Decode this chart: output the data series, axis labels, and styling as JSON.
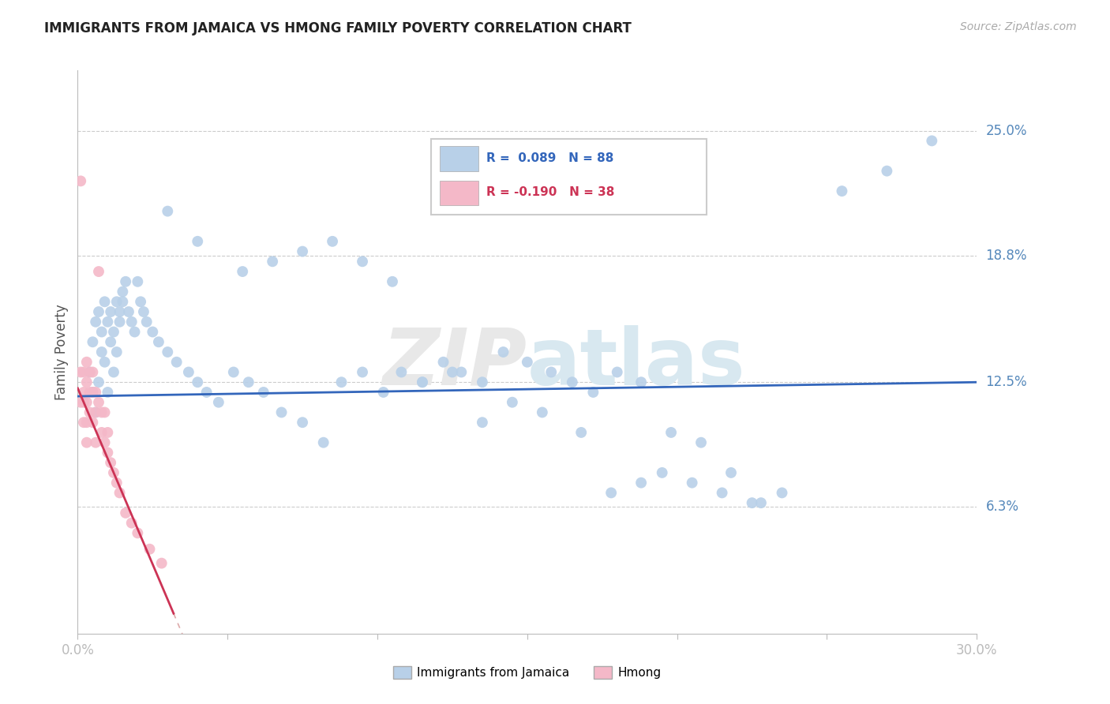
{
  "title": "IMMIGRANTS FROM JAMAICA VS HMONG FAMILY POVERTY CORRELATION CHART",
  "source": "Source: ZipAtlas.com",
  "ylabel": "Family Poverty",
  "ytick_labels": [
    "25.0%",
    "18.8%",
    "12.5%",
    "6.3%"
  ],
  "ytick_values": [
    0.25,
    0.188,
    0.125,
    0.063
  ],
  "xlim": [
    0.0,
    0.3
  ],
  "ylim": [
    0.0,
    0.28
  ],
  "watermark": "ZIPatlas",
  "legend_label_1": "Immigrants from Jamaica",
  "legend_label_2": "Hmong",
  "blue_color": "#b8d0e8",
  "pink_color": "#f4b8c8",
  "blue_line_color": "#3366bb",
  "pink_line_color": "#cc3355",
  "pink_dash_color": "#ddaaaa",
  "blue_r": 0.089,
  "blue_n": 88,
  "pink_r": -0.19,
  "pink_n": 38,
  "blue_scatter_x": [
    0.004,
    0.005,
    0.005,
    0.006,
    0.006,
    0.007,
    0.007,
    0.008,
    0.008,
    0.009,
    0.009,
    0.01,
    0.01,
    0.011,
    0.011,
    0.012,
    0.012,
    0.013,
    0.013,
    0.014,
    0.014,
    0.015,
    0.015,
    0.016,
    0.017,
    0.018,
    0.019,
    0.02,
    0.021,
    0.022,
    0.023,
    0.025,
    0.027,
    0.03,
    0.033,
    0.037,
    0.04,
    0.043,
    0.047,
    0.052,
    0.057,
    0.062,
    0.068,
    0.075,
    0.082,
    0.088,
    0.095,
    0.102,
    0.108,
    0.115,
    0.122,
    0.128,
    0.135,
    0.142,
    0.15,
    0.158,
    0.165,
    0.172,
    0.18,
    0.188,
    0.195,
    0.205,
    0.215,
    0.225,
    0.235,
    0.03,
    0.04,
    0.055,
    0.065,
    0.075,
    0.085,
    0.095,
    0.105,
    0.115,
    0.125,
    0.135,
    0.145,
    0.155,
    0.168,
    0.178,
    0.188,
    0.198,
    0.208,
    0.218,
    0.228,
    0.255,
    0.27,
    0.285
  ],
  "blue_scatter_y": [
    0.13,
    0.145,
    0.12,
    0.155,
    0.11,
    0.16,
    0.125,
    0.15,
    0.14,
    0.165,
    0.135,
    0.155,
    0.12,
    0.16,
    0.145,
    0.15,
    0.13,
    0.165,
    0.14,
    0.16,
    0.155,
    0.17,
    0.165,
    0.175,
    0.16,
    0.155,
    0.15,
    0.175,
    0.165,
    0.16,
    0.155,
    0.15,
    0.145,
    0.14,
    0.135,
    0.13,
    0.125,
    0.12,
    0.115,
    0.13,
    0.125,
    0.12,
    0.11,
    0.105,
    0.095,
    0.125,
    0.13,
    0.12,
    0.13,
    0.125,
    0.135,
    0.13,
    0.125,
    0.14,
    0.135,
    0.13,
    0.125,
    0.12,
    0.13,
    0.125,
    0.08,
    0.075,
    0.07,
    0.065,
    0.07,
    0.21,
    0.195,
    0.18,
    0.185,
    0.19,
    0.195,
    0.185,
    0.175,
    0.125,
    0.13,
    0.105,
    0.115,
    0.11,
    0.1,
    0.07,
    0.075,
    0.1,
    0.095,
    0.08,
    0.065,
    0.22,
    0.23,
    0.245
  ],
  "pink_scatter_x": [
    0.001,
    0.001,
    0.001,
    0.002,
    0.002,
    0.002,
    0.002,
    0.003,
    0.003,
    0.003,
    0.003,
    0.003,
    0.004,
    0.004,
    0.004,
    0.005,
    0.005,
    0.005,
    0.006,
    0.006,
    0.006,
    0.007,
    0.007,
    0.008,
    0.008,
    0.009,
    0.009,
    0.01,
    0.01,
    0.011,
    0.012,
    0.013,
    0.014,
    0.016,
    0.018,
    0.02,
    0.024,
    0.028
  ],
  "pink_scatter_y": [
    0.225,
    0.13,
    0.115,
    0.13,
    0.12,
    0.115,
    0.105,
    0.135,
    0.125,
    0.115,
    0.105,
    0.095,
    0.13,
    0.12,
    0.11,
    0.13,
    0.12,
    0.105,
    0.12,
    0.11,
    0.095,
    0.18,
    0.115,
    0.11,
    0.1,
    0.11,
    0.095,
    0.1,
    0.09,
    0.085,
    0.08,
    0.075,
    0.07,
    0.06,
    0.055,
    0.05,
    0.042,
    0.035
  ]
}
